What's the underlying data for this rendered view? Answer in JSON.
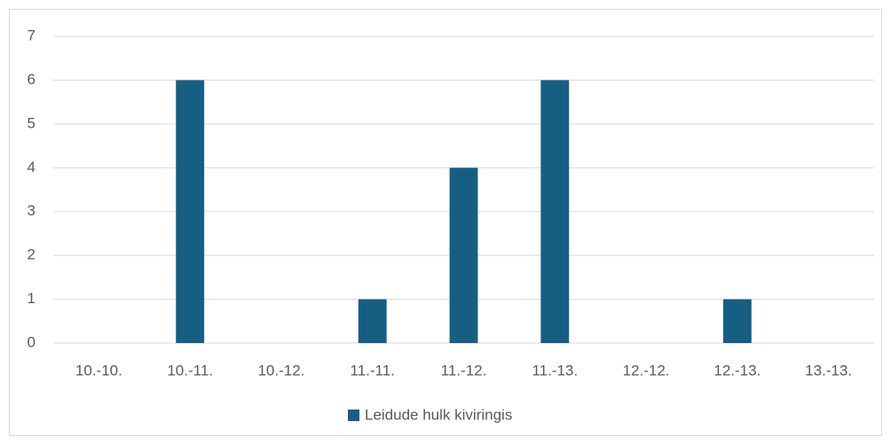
{
  "chart_data": {
    "type": "bar",
    "categories": [
      "10.-10.",
      "10.-11.",
      "10.-12.",
      "11.-11.",
      "11.-12.",
      "11.-13.",
      "12.-12.",
      "12.-13.",
      "13.-13."
    ],
    "series": [
      {
        "name": "Leidude hulk kiviringis",
        "color": "#165f82",
        "values": [
          0,
          6,
          0,
          1,
          4,
          6,
          0,
          1,
          0
        ]
      }
    ],
    "ylim": [
      0,
      7
    ],
    "yticks": [
      0,
      1,
      2,
      3,
      4,
      5,
      6,
      7
    ],
    "grid": true,
    "legend": "bottom"
  }
}
